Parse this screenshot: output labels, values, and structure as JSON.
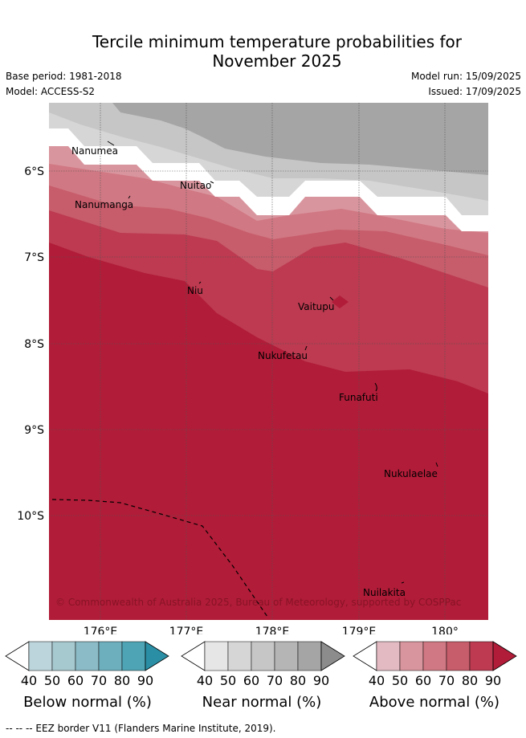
{
  "title_line1": "Tercile minimum temperature probabilities for",
  "title_line2": "November 2025",
  "meta": {
    "base_period": "Base period: 1981-2018",
    "model": "Model: ACCESS-S2",
    "model_run": "Model run: 15/09/2025",
    "issued": "Issued: 17/09/2025"
  },
  "map": {
    "lon_ticks": [
      "176°E",
      "177°E",
      "178°E",
      "179°E",
      "180°"
    ],
    "lat_ticks": [
      "6°S",
      "7°S",
      "8°S",
      "9°S",
      "10°S"
    ],
    "places": [
      {
        "name": "Nanumea"
      },
      {
        "name": "Nuitao"
      },
      {
        "name": "Nanumanga"
      },
      {
        "name": "Niu"
      },
      {
        "name": "Vaitupu"
      },
      {
        "name": "Nukufetau"
      },
      {
        "name": "Funafuti"
      },
      {
        "name": "Nukulaelae"
      },
      {
        "name": "Nuilakita"
      }
    ],
    "copyright": "© Commonwealth of Australia 2025, Bureau of Meteorology, supported by COSPPac"
  },
  "legends": [
    {
      "label": "Below normal (%)",
      "ticks": [
        "40",
        "50",
        "60",
        "70",
        "80",
        "90"
      ],
      "colors": [
        "#ffffff",
        "#bcd5dc",
        "#a6c8cf",
        "#8bbbc6",
        "#6eafbe",
        "#4ea4b5",
        "#2a8fa5"
      ]
    },
    {
      "label": "Near normal (%)",
      "ticks": [
        "40",
        "50",
        "60",
        "70",
        "80",
        "90"
      ],
      "colors": [
        "#ffffff",
        "#e6e6e6",
        "#d6d6d6",
        "#c6c6c6",
        "#b5b5b5",
        "#a5a5a5",
        "#8c8c8c"
      ]
    },
    {
      "label": "Above normal (%)",
      "ticks": [
        "40",
        "50",
        "60",
        "70",
        "80",
        "90"
      ],
      "colors": [
        "#ffffff",
        "#e3bac2",
        "#d9959e",
        "#d07883",
        "#c75c6b",
        "#bd3a50",
        "#b11c38"
      ]
    }
  ],
  "footer": "--  --  -- EEZ border V11 (Flanders Marine Institute, 2019)."
}
